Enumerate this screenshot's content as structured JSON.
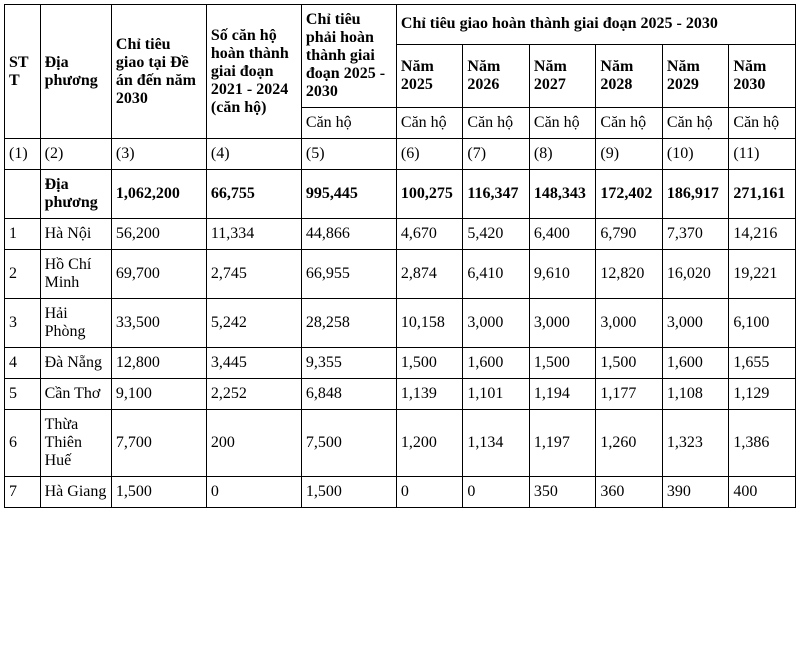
{
  "headers": {
    "stt": "STT",
    "dia_phuong": "Địa phương",
    "col3": "Chỉ tiêu giao tại Đề án đến năm 2030",
    "col4": "Số căn hộ hoàn thành giai đoạn 2021 - 2024 (căn hộ)",
    "col5_top": "Chỉ tiêu phải hoàn thành giai đoạn 2025 - 2030",
    "group_years": "Chỉ tiêu giao hoàn thành giai đoạn 2025 - 2030",
    "nam2025": "Năm 2025",
    "nam2026": "Năm 2026",
    "nam2027": "Năm 2027",
    "nam2028": "Năm 2028",
    "nam2029": "Năm 2029",
    "nam2030": "Năm 2030",
    "unit": "Căn hộ"
  },
  "index_row": {
    "c1": "(1)",
    "c2": "(2)",
    "c3": "(3)",
    "c4": "(4)",
    "c5": "(5)",
    "c6": "(6)",
    "c7": "(7)",
    "c8": "(8)",
    "c9": "(9)",
    "c10": "(10)",
    "c11": "(11)"
  },
  "total": {
    "stt": "",
    "label": "Địa phương",
    "v3": "1,062,200",
    "v4": "66,755",
    "v5": "995,445",
    "v6": "100,275",
    "v7": "116,347",
    "v8": "148,343",
    "v9": "172,402",
    "v10": "186,917",
    "v11": "271,161"
  },
  "rows": [
    {
      "stt": "1",
      "name": "Hà Nội",
      "v3": "56,200",
      "v4": "11,334",
      "v5": "44,866",
      "v6": "4,670",
      "v7": "5,420",
      "v8": "6,400",
      "v9": "6,790",
      "v10": "7,370",
      "v11": "14,216"
    },
    {
      "stt": "2",
      "name": "Hồ Chí Minh",
      "v3": "69,700",
      "v4": "2,745",
      "v5": "66,955",
      "v6": "2,874",
      "v7": "6,410",
      "v8": "9,610",
      "v9": "12,820",
      "v10": "16,020",
      "v11": "19,221"
    },
    {
      "stt": "3",
      "name": "Hải Phòng",
      "v3": "33,500",
      "v4": "5,242",
      "v5": "28,258",
      "v6": "10,158",
      "v7": "3,000",
      "v8": "3,000",
      "v9": "3,000",
      "v10": "3,000",
      "v11": "6,100"
    },
    {
      "stt": "4",
      "name": "Đà Nẵng",
      "v3": "12,800",
      "v4": "3,445",
      "v5": "9,355",
      "v6": "1,500",
      "v7": "1,600",
      "v8": "1,500",
      "v9": "1,500",
      "v10": "1,600",
      "v11": "1,655"
    },
    {
      "stt": "5",
      "name": "Cần Thơ",
      "v3": "9,100",
      "v4": "2,252",
      "v5": "6,848",
      "v6": "1,139",
      "v7": "1,101",
      "v8": "1,194",
      "v9": "1,177",
      "v10": "1,108",
      "v11": "1,129"
    },
    {
      "stt": "6",
      "name": "Thừa Thiên Huế",
      "v3": "7,700",
      "v4": "200",
      "v5": "7,500",
      "v6": "1,200",
      "v7": "1,134",
      "v8": "1,197",
      "v9": "1,260",
      "v10": "1,323",
      "v11": "1,386"
    },
    {
      "stt": "7",
      "name": "Hà Giang",
      "v3": "1,500",
      "v4": "0",
      "v5": "1,500",
      "v6": "0",
      "v7": "0",
      "v8": "350",
      "v9": "360",
      "v10": "390",
      "v11": "400"
    }
  ]
}
